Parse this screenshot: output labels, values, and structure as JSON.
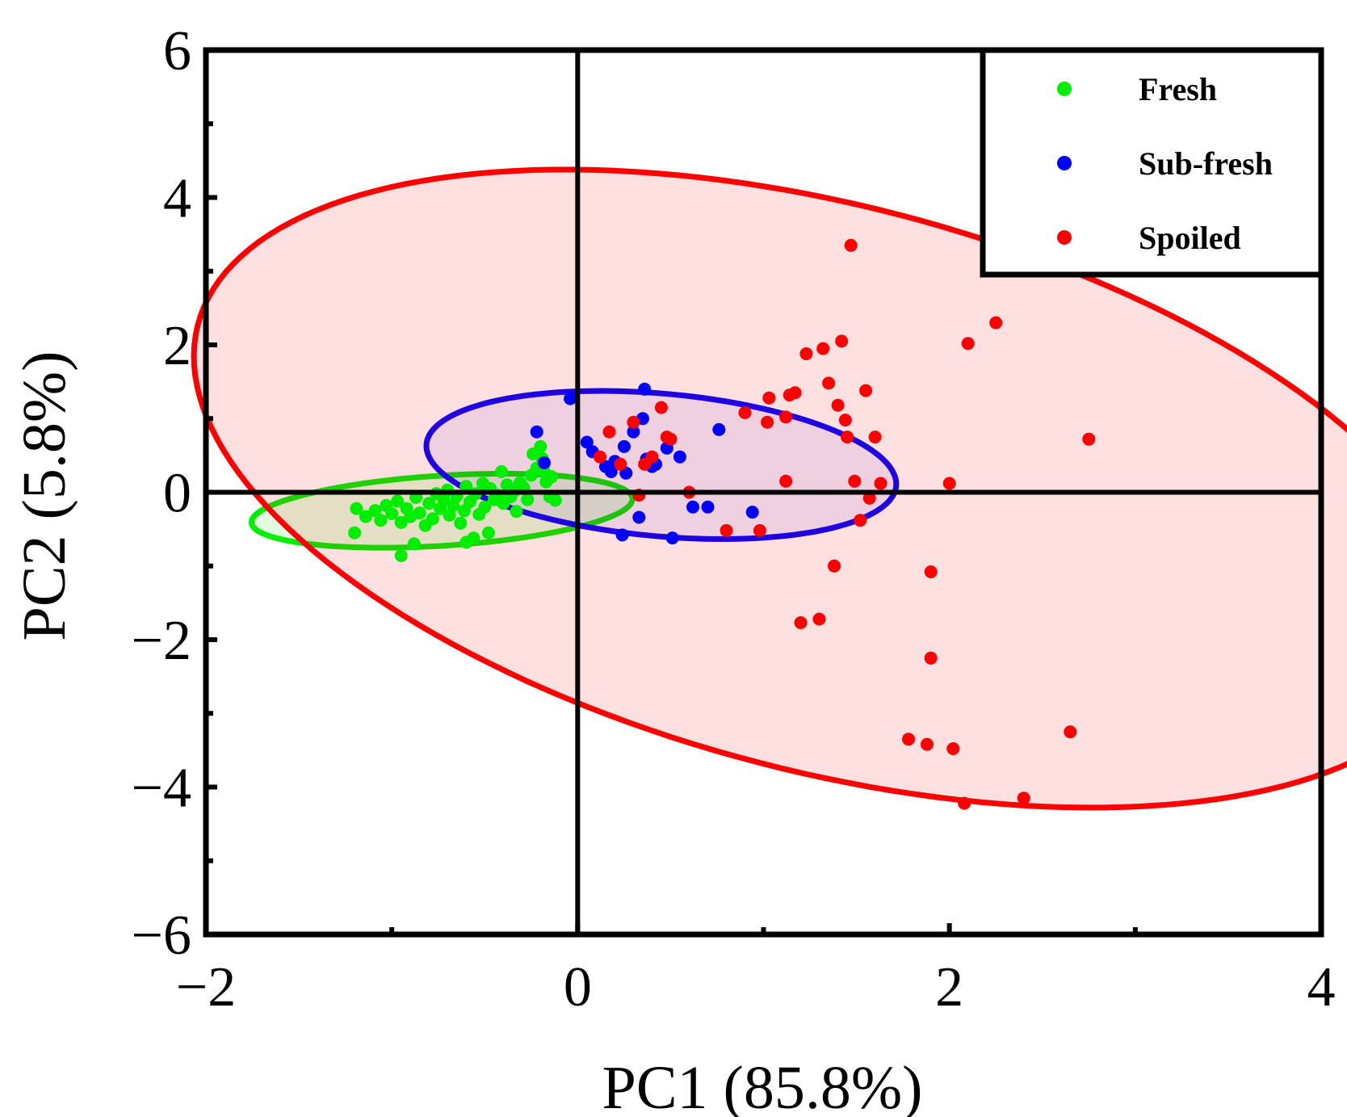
{
  "chart_data": {
    "type": "scatter",
    "xlabel": "PC1 (85.8%)",
    "ylabel": "PC2 (5.8%)",
    "xlim": [
      -2,
      4
    ],
    "ylim": [
      -6,
      6
    ],
    "xticks": [
      -2,
      0,
      2,
      4
    ],
    "yticks": [
      -6,
      -4,
      -2,
      0,
      2,
      4,
      6
    ],
    "x_tick_labels": [
      "−2",
      "0",
      "2",
      "4"
    ],
    "y_tick_labels": [
      "−6",
      "−4",
      "−2",
      "0",
      "2",
      "4",
      "6"
    ],
    "grid": false,
    "reference_lines": {
      "x": 0,
      "y": 0
    },
    "legend_position": "top-right",
    "series": [
      {
        "name": "Fresh",
        "color": "#00ee00",
        "fill": "rgba(0,238,0,0.12)",
        "ellipse": {
          "cx": -0.73,
          "cy": -0.25,
          "rx": 1.04,
          "ry": 0.47,
          "angle_deg": 11
        },
        "points": [
          [
            -1.19,
            -0.22
          ],
          [
            -1.14,
            -0.33
          ],
          [
            -1.09,
            -0.25
          ],
          [
            -1.06,
            -0.38
          ],
          [
            -1.03,
            -0.18
          ],
          [
            -1.0,
            -0.29
          ],
          [
            -0.97,
            -0.12
          ],
          [
            -0.95,
            -0.41
          ],
          [
            -0.92,
            -0.22
          ],
          [
            -0.9,
            -0.33
          ],
          [
            -0.87,
            -0.07
          ],
          [
            -0.85,
            -0.28
          ],
          [
            -0.82,
            -0.45
          ],
          [
            -0.8,
            -0.15
          ],
          [
            -0.78,
            -0.36
          ],
          [
            -0.76,
            -0.02
          ],
          [
            -0.74,
            -0.22
          ],
          [
            -0.72,
            -0.1
          ],
          [
            -0.7,
            0.03
          ],
          [
            -0.69,
            -0.31
          ],
          [
            -0.67,
            -0.18
          ],
          [
            -0.65,
            -0.05
          ],
          [
            -0.63,
            -0.42
          ],
          [
            -0.61,
            -0.25
          ],
          [
            -0.6,
            0.08
          ],
          [
            -0.58,
            -0.13
          ],
          [
            -0.56,
            -0.62
          ],
          [
            -0.55,
            -0.02
          ],
          [
            -0.53,
            -0.3
          ],
          [
            -0.51,
            0.12
          ],
          [
            -0.5,
            -0.2
          ],
          [
            -0.48,
            -0.55
          ],
          [
            -0.47,
            0.05
          ],
          [
            -0.45,
            -0.1
          ],
          [
            -0.43,
            -0.04
          ],
          [
            -0.41,
            0.28
          ],
          [
            -0.4,
            -0.15
          ],
          [
            -0.38,
            0.1
          ],
          [
            -0.36,
            -0.06
          ],
          [
            -0.34,
            0.02
          ],
          [
            -0.33,
            -0.26
          ],
          [
            -0.31,
            0.13
          ],
          [
            -0.29,
            0.06
          ],
          [
            -0.27,
            -0.1
          ],
          [
            -0.25,
            0.23
          ],
          [
            -0.24,
            0.52
          ],
          [
            -0.22,
            0.33
          ],
          [
            -0.2,
            0.62
          ],
          [
            -0.19,
            0.46
          ],
          [
            -0.18,
            0.28
          ],
          [
            -0.17,
            0.14
          ],
          [
            -0.15,
            -0.06
          ],
          [
            -0.14,
            0.21
          ],
          [
            -0.12,
            -0.11
          ],
          [
            -0.95,
            -0.86
          ],
          [
            -0.6,
            -0.68
          ],
          [
            -1.2,
            -0.55
          ],
          [
            -0.88,
            -0.7
          ]
        ]
      },
      {
        "name": "Sub-fresh",
        "color": "#0000ff",
        "fill": "rgba(0,0,255,0.07)",
        "ellipse": {
          "cx": 0.45,
          "cy": 0.37,
          "rx": 1.32,
          "ry": 0.93,
          "angle_deg": -24
        },
        "points": [
          [
            -0.22,
            0.82
          ],
          [
            -0.18,
            0.4
          ],
          [
            -0.04,
            1.27
          ],
          [
            0.05,
            0.68
          ],
          [
            0.08,
            0.55
          ],
          [
            0.15,
            0.35
          ],
          [
            0.18,
            0.28
          ],
          [
            0.2,
            0.42
          ],
          [
            0.24,
            -0.58
          ],
          [
            0.25,
            0.62
          ],
          [
            0.26,
            0.26
          ],
          [
            0.3,
            0.82
          ],
          [
            0.33,
            -0.34
          ],
          [
            0.35,
            1.0
          ],
          [
            0.37,
            0.45
          ],
          [
            0.4,
            0.35
          ],
          [
            0.42,
            0.38
          ],
          [
            0.48,
            0.6
          ],
          [
            0.51,
            -0.62
          ],
          [
            0.55,
            0.48
          ],
          [
            0.62,
            -0.2
          ],
          [
            0.7,
            -0.2
          ],
          [
            0.76,
            0.85
          ],
          [
            0.94,
            -0.27
          ],
          [
            0.36,
            1.4
          ]
        ]
      },
      {
        "name": "Spoiled",
        "color": "#ff0000",
        "fill": "rgba(255,0,0,0.12)",
        "ellipse": {
          "cx": 1.35,
          "cy": 0.05,
          "rx": 4.72,
          "ry": 2.85,
          "angle_deg": -60
        },
        "points": [
          [
            0.12,
            0.48
          ],
          [
            0.17,
            0.82
          ],
          [
            0.23,
            0.38
          ],
          [
            0.3,
            0.95
          ],
          [
            0.33,
            -0.04
          ],
          [
            0.36,
            0.38
          ],
          [
            0.4,
            0.48
          ],
          [
            0.45,
            1.15
          ],
          [
            0.48,
            0.75
          ],
          [
            0.5,
            0.72
          ],
          [
            0.6,
            0.0
          ],
          [
            0.8,
            -0.52
          ],
          [
            0.9,
            1.08
          ],
          [
            0.98,
            -0.52
          ],
          [
            1.02,
            0.95
          ],
          [
            1.03,
            1.28
          ],
          [
            1.12,
            0.15
          ],
          [
            1.12,
            1.02
          ],
          [
            1.14,
            1.32
          ],
          [
            1.17,
            1.35
          ],
          [
            1.2,
            -1.77
          ],
          [
            1.23,
            1.88
          ],
          [
            1.3,
            -1.72
          ],
          [
            1.32,
            1.95
          ],
          [
            1.35,
            1.48
          ],
          [
            1.38,
            -1.0
          ],
          [
            1.4,
            1.18
          ],
          [
            1.42,
            2.05
          ],
          [
            1.44,
            0.98
          ],
          [
            1.45,
            0.75
          ],
          [
            1.47,
            3.35
          ],
          [
            1.49,
            0.15
          ],
          [
            1.52,
            -0.38
          ],
          [
            1.55,
            1.38
          ],
          [
            1.57,
            -0.08
          ],
          [
            1.6,
            0.75
          ],
          [
            1.63,
            0.12
          ],
          [
            1.78,
            -3.35
          ],
          [
            1.88,
            -3.42
          ],
          [
            1.9,
            -1.08
          ],
          [
            1.9,
            -2.25
          ],
          [
            2.0,
            0.12
          ],
          [
            2.02,
            -3.48
          ],
          [
            2.08,
            -4.22
          ],
          [
            2.1,
            2.02
          ],
          [
            2.25,
            2.3
          ],
          [
            2.4,
            -4.15
          ],
          [
            2.65,
            -3.25
          ],
          [
            2.75,
            0.72
          ]
        ]
      }
    ]
  }
}
